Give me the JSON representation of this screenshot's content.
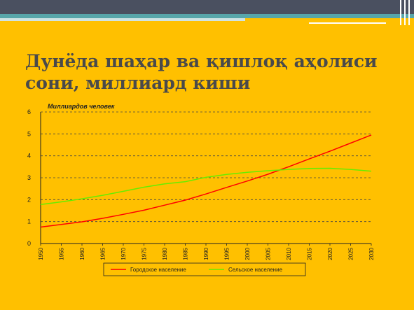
{
  "slide": {
    "title_line1": "Дунёда шаҳар ва қишлоқ аҳолиси",
    "title_line2": "сони, миллиард киши"
  },
  "chart_data": {
    "type": "line",
    "title": "",
    "ylabel": "Миллиардов человек",
    "xlabel": "",
    "ylim": [
      0,
      6
    ],
    "yticks": [
      0,
      1,
      2,
      3,
      4,
      5,
      6
    ],
    "xlim": [
      1950,
      2030
    ],
    "xticks": [
      "1950",
      "1955",
      "1960",
      "1965",
      "1970",
      "1975",
      "1980",
      "1985",
      "1990",
      "1995",
      "2000",
      "2005",
      "2010",
      "2015",
      "2020",
      "2025",
      "2030"
    ],
    "grid": "horizontal-dashed",
    "legend_position": "bottom",
    "x": [
      1950,
      1955,
      1960,
      1965,
      1970,
      1975,
      1980,
      1985,
      1990,
      1995,
      2000,
      2005,
      2010,
      2015,
      2020,
      2025,
      2030
    ],
    "series": [
      {
        "name": "Городское население",
        "color": "#ff0000",
        "values": [
          0.75,
          0.87,
          0.99,
          1.15,
          1.33,
          1.52,
          1.75,
          1.98,
          2.26,
          2.56,
          2.85,
          3.16,
          3.5,
          3.86,
          4.21,
          4.58,
          4.95
        ]
      },
      {
        "name": "Сельское население",
        "color": "#66ee00",
        "values": [
          1.78,
          1.9,
          2.04,
          2.2,
          2.38,
          2.57,
          2.72,
          2.82,
          3.02,
          3.15,
          3.25,
          3.32,
          3.38,
          3.42,
          3.43,
          3.38,
          3.3
        ]
      }
    ]
  }
}
